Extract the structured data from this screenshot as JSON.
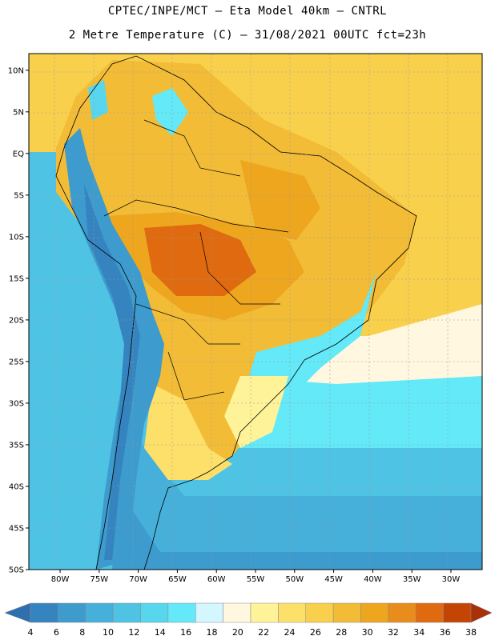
{
  "header": {
    "line1": "CPTEC/INPE/MCT –  Eta Model 40km – CNTRL",
    "line2": "2 Metre Temperature (C) – 31/08/2021 00UTC fct=23h"
  },
  "chart_data": {
    "type": "heatmap",
    "title": "2 Metre Temperature (C)",
    "model": "Eta Model 40km",
    "run": "31/08/2021 00UTC",
    "forecast_hour": "fct=23h",
    "lon_range": [
      -84,
      -26
    ],
    "lat_range": [
      -50,
      12
    ],
    "lon_ticks": [
      "80W",
      "75W",
      "70W",
      "65W",
      "60W",
      "55W",
      "50W",
      "45W",
      "40W",
      "35W",
      "30W"
    ],
    "lon_values": [
      -80,
      -75,
      -70,
      -65,
      -60,
      -55,
      -50,
      -45,
      -40,
      -35,
      -30
    ],
    "lat_ticks": [
      "10N",
      "5N",
      "EQ",
      "5S",
      "10S",
      "15S",
      "20S",
      "25S",
      "30S",
      "35S",
      "40S",
      "45S",
      "50S"
    ],
    "lat_values": [
      10,
      5,
      0,
      -5,
      -10,
      -15,
      -20,
      -25,
      -30,
      -35,
      -40,
      -45,
      -50
    ],
    "colorbar": {
      "levels": [
        4,
        6,
        8,
        10,
        12,
        14,
        16,
        18,
        20,
        22,
        24,
        26,
        28,
        30,
        32,
        34,
        36,
        38
      ],
      "colors": [
        "#2f6fb0",
        "#3584bf",
        "#3d9bcd",
        "#46b0da",
        "#4fc3e4",
        "#58d6ee",
        "#63e9f8",
        "#d4f6ff",
        "#fff7e0",
        "#fff39a",
        "#fde06a",
        "#f9d04c",
        "#f2bc37",
        "#eea61e",
        "#e88c1c",
        "#e06a10",
        "#c44503",
        "#a83108"
      ]
    },
    "regions": [
      {
        "name": "tropical-ocean",
        "color": "#f9d04c"
      },
      {
        "name": "amazon-central-brazil-hot",
        "color": "#f2bc37"
      },
      {
        "name": "core-max-heat",
        "color": "#e06a10"
      },
      {
        "name": "southern-atlantic-cold",
        "color": "#46b0da"
      },
      {
        "name": "andes-cold",
        "color": "#3584bf"
      }
    ]
  }
}
